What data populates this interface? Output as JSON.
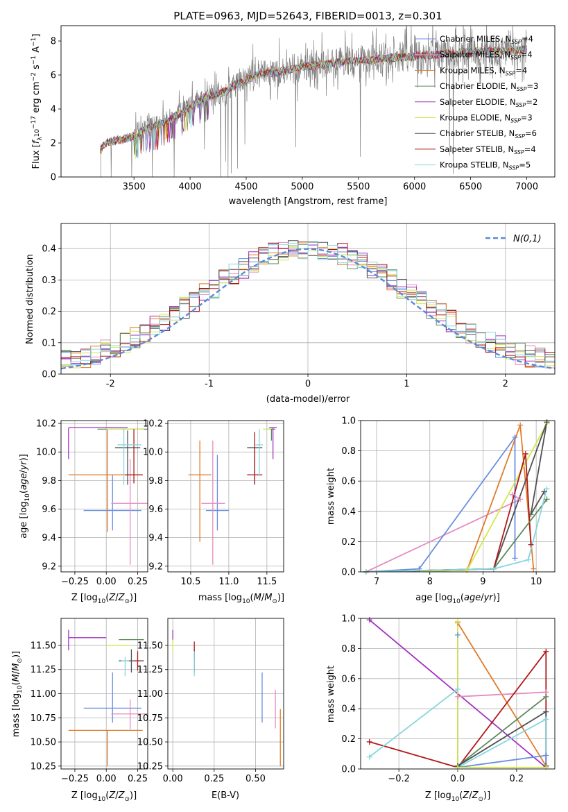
{
  "colors": {
    "chabrier_miles": "#6a8fdf",
    "salpeter_miles": "#e38bbf",
    "kroupa_miles": "#e07b2a",
    "chabrier_elodie": "#5a8a5a",
    "salpeter_elodie": "#a030c0",
    "kroupa_elodie": "#d4e84a",
    "chabrier_stelib": "#505050",
    "salpeter_stelib": "#b01818",
    "kroupa_stelib": "#86d6de",
    "data_spectrum": "#808080",
    "normal": "#5b8ad8"
  },
  "legend_spectrum": [
    {
      "key": "chabrier_miles",
      "label": "Chabrier MILES, N",
      "sub": "SSP",
      "suffix": "=4"
    },
    {
      "key": "salpeter_miles",
      "label": "Salpeter MILES, N",
      "sub": "SSP",
      "suffix": "=4"
    },
    {
      "key": "kroupa_miles",
      "label": "Kroupa MILES, N",
      "sub": "SSP",
      "suffix": "=4"
    },
    {
      "key": "chabrier_elodie",
      "label": "Chabrier ELODIE, N",
      "sub": "SSP",
      "suffix": "=3"
    },
    {
      "key": "salpeter_elodie",
      "label": "Salpeter ELODIE, N",
      "sub": "SSP",
      "suffix": "=2"
    },
    {
      "key": "kroupa_elodie",
      "label": "Kroupa ELODIE, N",
      "sub": "SSP",
      "suffix": "=3"
    },
    {
      "key": "chabrier_stelib",
      "label": "Chabrier STELIB, N",
      "sub": "SSP",
      "suffix": "=6"
    },
    {
      "key": "salpeter_stelib",
      "label": "Salpeter STELIB, N",
      "sub": "SSP",
      "suffix": "=4"
    },
    {
      "key": "kroupa_stelib",
      "label": "Kroupa STELIB, N",
      "sub": "SSP",
      "suffix": "=5"
    }
  ],
  "chart_data": [
    {
      "id": "spectrum",
      "type": "line",
      "title": "PLATE=0963, MJD=52643, FIBERID=0013, z=0.301",
      "xlabel": "wavelength [Angstrom, rest frame]",
      "ylabel_parts": [
        "Flux [",
        "f",
        "λ",
        "10",
        "−17",
        " erg cm",
        "−2",
        " s",
        "−1",
        " A",
        "−1",
        "]"
      ],
      "xlim": [
        2850,
        7250
      ],
      "ylim": [
        0,
        8.9
      ],
      "xticks": [
        3500,
        4000,
        4500,
        5000,
        5500,
        6000,
        6500,
        7000
      ],
      "yticks": [
        0,
        2,
        4,
        6,
        8
      ],
      "legend_loc": "upper right",
      "model_continuum": {
        "x": [
          3200,
          3250,
          3300,
          3400,
          3500,
          3600,
          3700,
          3800,
          3900,
          4000,
          4100,
          4200,
          4300,
          4400,
          4500,
          4600,
          4700,
          4800,
          4900,
          5000,
          5200,
          5400,
          5600,
          5800,
          6000,
          6200,
          6400,
          6600,
          6800,
          7000
        ],
        "y": [
          1.6,
          2.0,
          2.1,
          2.2,
          2.4,
          2.8,
          3.0,
          3.3,
          3.7,
          4.1,
          4.6,
          4.8,
          5.0,
          5.4,
          5.7,
          6.0,
          6.1,
          6.2,
          6.3,
          6.5,
          6.6,
          6.8,
          6.9,
          7.0,
          7.1,
          7.2,
          7.3,
          7.4,
          7.4,
          7.5
        ]
      }
    },
    {
      "id": "residuals",
      "type": "histogram",
      "xlabel": "(data-model)/error",
      "ylabel": "Normed distribution",
      "xlim": [
        -2.5,
        2.5
      ],
      "ylim": [
        0,
        0.48
      ],
      "xticks": [
        -2,
        -1,
        0,
        1,
        2
      ],
      "yticks": [
        0.0,
        0.1,
        0.2,
        0.3,
        0.4
      ],
      "grid": true,
      "legend": "N(0,1)",
      "legend_loc": "upper right",
      "bin_width": 0.1
    },
    {
      "id": "age_vs_Z",
      "type": "errorbar",
      "xlabel": "Z [log10(Z/Z⊙)]",
      "ylabel": "age  [log10(age/yr)]",
      "xlim": [
        -0.36,
        0.33
      ],
      "ylim": [
        9.16,
        10.22
      ],
      "xticks": [
        -0.25,
        0.0,
        0.25
      ],
      "xticklabels": [
        "−0.25",
        "0.00",
        "0.25"
      ],
      "yticks": [
        9.2,
        9.4,
        9.6,
        9.8,
        10.0,
        10.2
      ],
      "grid": true,
      "points": [
        {
          "key": "chabrier_miles",
          "x": 0.05,
          "xerr": [
            0.23,
            0.23
          ],
          "y": 9.59,
          "yerr": [
            0.14,
            0.25
          ]
        },
        {
          "key": "salpeter_miles",
          "x": 0.19,
          "xerr": [
            0.15,
            0.15
          ],
          "y": 9.64,
          "yerr": [
            0.43,
            0.31
          ]
        },
        {
          "key": "kroupa_miles",
          "x": 0.01,
          "xerr": [
            0.31,
            0.28
          ],
          "y": 9.84,
          "yerr": [
            0.4,
            0.32
          ]
        },
        {
          "key": "chabrier_elodie",
          "x": 0.2,
          "xerr": [
            0.27,
            0.27
          ],
          "y": 10.16,
          "yerr": [
            0.0,
            0.0
          ]
        },
        {
          "key": "salpeter_elodie",
          "x": -0.3,
          "xerr": [
            0.0,
            0.47
          ],
          "y": 10.17,
          "yerr": [
            0.22,
            0.0
          ]
        },
        {
          "key": "kroupa_elodie",
          "x": 0.15,
          "xerr": [
            0.15,
            0.15
          ],
          "y": 10.16,
          "yerr": [
            0.0,
            0.0
          ]
        },
        {
          "key": "chabrier_stelib",
          "x": 0.17,
          "xerr": [
            0.1,
            0.1
          ],
          "y": 10.03,
          "yerr": [
            0.26,
            0.12
          ]
        },
        {
          "key": "salpeter_stelib",
          "x": 0.22,
          "xerr": [
            0.07,
            0.07
          ],
          "y": 9.84,
          "yerr": [
            0.06,
            0.32
          ]
        },
        {
          "key": "kroupa_stelib",
          "x": 0.14,
          "xerr": [
            0.05,
            0.14
          ],
          "y": 10.05,
          "yerr": [
            0.28,
            0.12
          ]
        }
      ]
    },
    {
      "id": "age_vs_mass",
      "type": "errorbar",
      "xlabel": "mass [log10(M/M⊙)]",
      "xlim": [
        10.2,
        11.72
      ],
      "ylim": [
        9.16,
        10.22
      ],
      "xticks": [
        10.5,
        11.0,
        11.5
      ],
      "xticklabels": [
        "10.5",
        "11.0",
        "11.5"
      ],
      "yticks": [
        9.2,
        9.4,
        9.6,
        9.8,
        10.0,
        10.2
      ],
      "grid": true,
      "points": [
        {
          "key": "chabrier_miles",
          "x": 10.85,
          "xerr": [
            0.15,
            0.15
          ],
          "y": 9.59,
          "yerr": [
            0.14,
            0.39
          ]
        },
        {
          "key": "salpeter_miles",
          "x": 10.79,
          "xerr": [
            0.15,
            0.16
          ],
          "y": 9.64,
          "yerr": [
            0.43,
            0.44
          ]
        },
        {
          "key": "kroupa_miles",
          "x": 10.62,
          "xerr": [
            0.15,
            0.15
          ],
          "y": 9.84,
          "yerr": [
            0.47,
            0.24
          ]
        },
        {
          "key": "chabrier_elodie",
          "x": 11.56,
          "xerr": [
            0.05,
            0.05
          ],
          "y": 10.16,
          "yerr": [
            0.08,
            0.0
          ]
        },
        {
          "key": "salpeter_elodie",
          "x": 11.58,
          "xerr": [
            0.05,
            0.05
          ],
          "y": 10.17,
          "yerr": [
            0.22,
            0.0
          ]
        },
        {
          "key": "kroupa_elodie",
          "x": 11.5,
          "xerr": [
            0.05,
            0.05
          ],
          "y": 10.16,
          "yerr": [
            0.0,
            0.0
          ]
        },
        {
          "key": "chabrier_stelib",
          "x": 11.34,
          "xerr": [
            0.1,
            0.1
          ],
          "y": 10.03,
          "yerr": [
            0.26,
            0.0
          ]
        },
        {
          "key": "salpeter_stelib",
          "x": 11.34,
          "xerr": [
            0.1,
            0.1
          ],
          "y": 9.84,
          "yerr": [
            0.06,
            0.3
          ]
        },
        {
          "key": "kroupa_stelib",
          "x": 11.4,
          "xerr": [
            0.05,
            0.05
          ],
          "y": 10.05,
          "yerr": [
            0.22,
            0.11
          ]
        }
      ]
    },
    {
      "id": "mass_weight_vs_age",
      "type": "line",
      "xlabel": "age  [log10(age/yr)]",
      "ylabel": "mass weight",
      "xlim": [
        6.7,
        10.35
      ],
      "ylim": [
        0,
        1.0
      ],
      "xticks": [
        7,
        8,
        9,
        10
      ],
      "yticks": [
        0.0,
        0.2,
        0.4,
        0.6,
        0.8,
        1.0
      ],
      "grid": true,
      "series": [
        {
          "key": "salpeter_miles",
          "x": [
            6.8,
            9.7,
            9.55
          ],
          "y": [
            0.0,
            0.48,
            0.51
          ]
        },
        {
          "key": "chabrier_miles",
          "x": [
            6.8,
            7.8,
            9.6,
            9.6
          ],
          "y": [
            0.0,
            0.02,
            0.89,
            0.09
          ]
        },
        {
          "key": "kroupa_miles",
          "x": [
            6.8,
            8.7,
            9.7,
            9.95
          ],
          "y": [
            0.0,
            0.01,
            0.97,
            0.02
          ]
        },
        {
          "key": "kroupa_elodie",
          "x": [
            6.8,
            8.7,
            10.2
          ],
          "y": [
            0.0,
            0.01,
            0.98
          ]
        },
        {
          "key": "chabrier_stelib",
          "x": [
            6.8,
            9.2,
            10.2,
            9.9,
            10.15
          ],
          "y": [
            0.0,
            0.02,
            0.99,
            0.38,
            0.53
          ]
        },
        {
          "key": "salpeter_stelib",
          "x": [
            6.8,
            9.2,
            9.8,
            9.9
          ],
          "y": [
            0.0,
            0.02,
            0.78,
            0.18
          ]
        },
        {
          "key": "chabrier_elodie",
          "x": [
            6.8,
            9.2,
            10.2
          ],
          "y": [
            0.0,
            0.02,
            0.48
          ]
        },
        {
          "key": "kroupa_stelib",
          "x": [
            6.8,
            9.2,
            9.85,
            10.2
          ],
          "y": [
            0.0,
            0.02,
            0.08,
            0.55
          ]
        }
      ]
    },
    {
      "id": "mass_vs_Z",
      "type": "errorbar",
      "xlabel": "Z [log10(Z/Z⊙)]",
      "ylabel": "mass [log10(M/M⊙)]",
      "xlim": [
        -0.36,
        0.33
      ],
      "ylim": [
        10.22,
        11.78
      ],
      "xticks": [
        -0.25,
        0.0,
        0.25
      ],
      "xticklabels": [
        "−0.25",
        "0.00",
        "0.25"
      ],
      "yticks": [
        10.25,
        10.5,
        10.75,
        11.0,
        11.25,
        11.5
      ],
      "grid": true,
      "points": [
        {
          "key": "chabrier_miles",
          "x": 0.05,
          "xerr": [
            0.23,
            0.23
          ],
          "y": 10.85,
          "yerr": [
            0.15,
            0.37
          ]
        },
        {
          "key": "salpeter_miles",
          "x": 0.19,
          "xerr": [
            0.15,
            0.15
          ],
          "y": 10.79,
          "yerr": [
            0.16,
            0.15
          ]
        },
        {
          "key": "kroupa_miles",
          "x": 0.01,
          "xerr": [
            0.31,
            0.28
          ],
          "y": 10.62,
          "yerr": [
            0.37,
            0.0
          ]
        },
        {
          "key": "chabrier_elodie",
          "x": 0.2,
          "xerr": [
            0.1,
            0.1
          ],
          "y": 11.56,
          "yerr": [
            0.0,
            0.0
          ]
        },
        {
          "key": "salpeter_elodie",
          "x": -0.3,
          "xerr": [
            0.0,
            0.3
          ],
          "y": 11.58,
          "yerr": [
            0.13,
            0.08
          ]
        },
        {
          "key": "kroupa_elodie",
          "x": 0.1,
          "xerr": [
            0.1,
            0.1
          ],
          "y": 11.5,
          "yerr": [
            0.0,
            0.0
          ]
        },
        {
          "key": "chabrier_stelib",
          "x": 0.2,
          "xerr": [
            0.1,
            0.1
          ],
          "y": 11.34,
          "yerr": [
            0.12,
            0.12
          ]
        },
        {
          "key": "salpeter_stelib",
          "x": 0.25,
          "xerr": [
            0.03,
            0.03
          ],
          "y": 11.34,
          "yerr": [
            0.1,
            0.1
          ]
        },
        {
          "key": "kroupa_stelib",
          "x": 0.15,
          "xerr": [
            0.03,
            0.03
          ],
          "y": 11.34,
          "yerr": [
            0.16,
            0.04
          ]
        }
      ]
    },
    {
      "id": "mass_vs_ebv",
      "type": "errorbar",
      "xlabel": "E(B-V)",
      "xlim": [
        -0.03,
        0.67
      ],
      "ylim": [
        10.22,
        11.78
      ],
      "xticks": [
        0.0,
        0.25,
        0.5
      ],
      "xticklabels": [
        "0.00",
        "0.25",
        "0.50"
      ],
      "yticks": [
        10.25,
        10.5,
        10.75,
        11.0,
        11.25,
        11.5
      ],
      "grid": true,
      "points": [
        {
          "key": "chabrier_miles",
          "x": 0.54,
          "y": 10.85,
          "yerr": [
            0.15,
            0.37
          ]
        },
        {
          "key": "salpeter_miles",
          "x": 0.62,
          "y": 10.79,
          "yerr": [
            0.15,
            0.25
          ]
        },
        {
          "key": "kroupa_miles",
          "x": 0.65,
          "y": 10.62,
          "yerr": [
            0.37,
            0.22
          ]
        },
        {
          "key": "salpeter_elodie",
          "x": 0.0,
          "y": 11.6,
          "yerr": [
            0.05,
            0.06
          ]
        },
        {
          "key": "kroupa_elodie",
          "x": 0.0,
          "y": 11.5,
          "yerr": [
            0.06,
            0.06
          ]
        },
        {
          "key": "chabrier_stelib",
          "x": 0.13,
          "y": 11.34,
          "yerr": [
            0.12,
            0.12
          ]
        },
        {
          "key": "salpeter_stelib",
          "x": 0.13,
          "y": 11.44,
          "yerr": [
            0.1,
            0.1
          ]
        },
        {
          "key": "kroupa_stelib",
          "x": 0.13,
          "y": 11.34,
          "yerr": [
            0.16,
            0.1
          ]
        }
      ]
    },
    {
      "id": "mass_weight_vs_Z",
      "type": "line",
      "xlabel": "Z [log10(Z/Z⊙)]",
      "ylabel": "mass weight",
      "xlim": [
        -0.33,
        0.33
      ],
      "ylim": [
        0,
        1.0
      ],
      "xticks": [
        -0.2,
        0.0,
        0.2
      ],
      "xticklabels": [
        "−0.2",
        "0.0",
        "0.2"
      ],
      "yticks": [
        0.0,
        0.2,
        0.4,
        0.6,
        0.8,
        1.0
      ],
      "grid": true,
      "series": [
        {
          "key": "salpeter_elodie",
          "x": [
            -0.3,
            0.3
          ],
          "y": [
            0.99,
            0.01
          ]
        },
        {
          "key": "kroupa_miles",
          "x": [
            0.0,
            0.3
          ],
          "y": [
            0.97,
            0.02
          ]
        },
        {
          "key": "salpeter_miles",
          "x": [
            0.0,
            0.3
          ],
          "y": [
            0.48,
            0.51
          ]
        },
        {
          "key": "salpeter_stelib",
          "x": [
            -0.3,
            0.0,
            0.3,
            0.3
          ],
          "y": [
            0.18,
            0.01,
            0.78,
            0.02
          ]
        },
        {
          "key": "chabrier_elodie",
          "x": [
            0.0,
            0.3
          ],
          "y": [
            0.02,
            0.48
          ]
        },
        {
          "key": "chabrier_stelib",
          "x": [
            0.0,
            0.3,
            0.3
          ],
          "y": [
            0.02,
            0.38,
            0.02
          ]
        },
        {
          "key": "kroupa_stelib",
          "x": [
            -0.3,
            0.0,
            0.0,
            0.3,
            0.3
          ],
          "y": [
            0.08,
            0.53,
            0.01,
            0.33,
            0.01
          ]
        },
        {
          "key": "chabrier_miles",
          "x": [
            0.0,
            0.0,
            0.3,
            0.3
          ],
          "y": [
            0.89,
            0.01,
            0.09,
            0.01
          ]
        },
        {
          "key": "kroupa_elodie",
          "x": [
            0.0,
            0.0,
            0.3
          ],
          "y": [
            0.98,
            0.01,
            0.01
          ]
        }
      ]
    }
  ]
}
